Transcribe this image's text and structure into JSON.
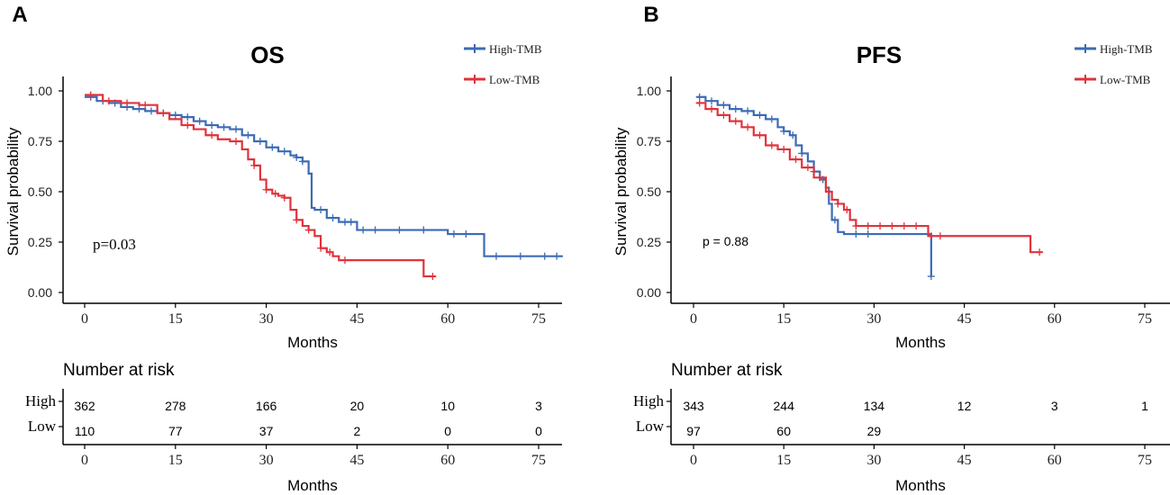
{
  "figure": {
    "panels": [
      {
        "letter": "A",
        "title": "OS",
        "pvalue": "p=0.03",
        "ylabel": "Survival probability",
        "xlabel": "Months",
        "risk_title": "Number at risk",
        "risk_xlabel": "Months",
        "legend": [
          "High-TMB",
          "Low-TMB"
        ],
        "risk_labels": [
          "High",
          "Low"
        ]
      },
      {
        "letter": "B",
        "title": "PFS",
        "pvalue": "p = 0.88",
        "ylabel": "Survival probability",
        "xlabel": "Months",
        "risk_title": "Number at risk",
        "risk_xlabel": "Months",
        "legend": [
          "High-TMB",
          "Low-TMB"
        ],
        "risk_labels": [
          "High",
          "Low"
        ]
      }
    ]
  },
  "chart_data": [
    {
      "type": "line",
      "subtype": "kaplan-meier",
      "title": "OS",
      "xlabel": "Months",
      "ylabel": "Survival probability",
      "xlim": [
        -2,
        79
      ],
      "ylim": [
        -0.02,
        1.02
      ],
      "xticks": [
        0,
        15,
        30,
        45,
        60,
        75
      ],
      "yticks": [
        0.0,
        0.25,
        0.5,
        0.75,
        1.0
      ],
      "ytick_labels": [
        "0.00",
        "0.25",
        "0.50",
        "0.75",
        "1.00"
      ],
      "pvalue": "p=0.03",
      "series": [
        {
          "name": "High-TMB",
          "color": "#3c6bb5",
          "x": [
            0,
            2,
            4,
            6,
            8,
            10,
            12,
            14,
            16,
            18,
            20,
            22,
            24,
            26,
            28,
            30,
            32,
            34,
            35,
            36,
            37,
            37.5,
            38,
            40,
            42,
            45,
            50,
            55,
            60,
            65,
            66,
            70,
            75,
            79
          ],
          "y": [
            0.97,
            0.95,
            0.94,
            0.92,
            0.91,
            0.9,
            0.89,
            0.88,
            0.87,
            0.85,
            0.83,
            0.82,
            0.81,
            0.78,
            0.75,
            0.72,
            0.7,
            0.68,
            0.67,
            0.65,
            0.59,
            0.42,
            0.41,
            0.37,
            0.35,
            0.31,
            0.31,
            0.31,
            0.29,
            0.29,
            0.18,
            0.18,
            0.18,
            0.18
          ],
          "censor_x": [
            1,
            3,
            5,
            7,
            9,
            11,
            13,
            15,
            17,
            19,
            21,
            23,
            25,
            27,
            29,
            31,
            33,
            35,
            36,
            39,
            41,
            43,
            44,
            46,
            48,
            52,
            56,
            61,
            63,
            68,
            72,
            76,
            78
          ]
        },
        {
          "name": "Low-TMB",
          "color": "#e0333b",
          "x": [
            0,
            3,
            6,
            9,
            12,
            14,
            16,
            18,
            20,
            22,
            24,
            26,
            27,
            28,
            29,
            30,
            31,
            32,
            33,
            34,
            35,
            36,
            37,
            38,
            39,
            40,
            41,
            42,
            45,
            50,
            55,
            56,
            58
          ],
          "y": [
            0.98,
            0.95,
            0.94,
            0.93,
            0.89,
            0.86,
            0.83,
            0.81,
            0.78,
            0.76,
            0.75,
            0.71,
            0.66,
            0.63,
            0.56,
            0.51,
            0.49,
            0.48,
            0.47,
            0.41,
            0.36,
            0.33,
            0.31,
            0.28,
            0.22,
            0.2,
            0.18,
            0.16,
            0.16,
            0.16,
            0.16,
            0.08,
            0.08
          ],
          "censor_x": [
            1,
            4,
            7,
            10,
            13,
            17,
            21,
            25,
            28,
            30,
            31.5,
            33,
            35,
            37,
            39,
            40.5,
            43,
            57.5
          ]
        }
      ]
    },
    {
      "type": "line",
      "subtype": "kaplan-meier",
      "title": "PFS",
      "xlabel": "Months",
      "ylabel": "Survival probability",
      "xlim": [
        -1,
        79
      ],
      "ylim": [
        -0.02,
        1.02
      ],
      "xticks": [
        0,
        15,
        30,
        45,
        60,
        75
      ],
      "yticks": [
        0.0,
        0.25,
        0.5,
        0.75,
        1.0
      ],
      "ytick_labels": [
        "0.00",
        "0.25",
        "0.50",
        "0.75",
        "1.00"
      ],
      "pvalue": "p = 0.88",
      "series": [
        {
          "name": "High-TMB",
          "color": "#3c6bb5",
          "x": [
            0.5,
            2,
            4,
            6,
            8,
            10,
            12,
            14,
            15,
            16,
            17,
            18,
            19,
            20,
            21,
            22,
            22.5,
            23,
            24,
            25,
            26,
            28,
            30,
            35,
            39,
            39.5
          ],
          "y": [
            0.97,
            0.95,
            0.93,
            0.91,
            0.9,
            0.88,
            0.86,
            0.82,
            0.8,
            0.78,
            0.73,
            0.69,
            0.65,
            0.6,
            0.56,
            0.52,
            0.44,
            0.36,
            0.3,
            0.29,
            0.29,
            0.29,
            0.29,
            0.29,
            0.29,
            0.08
          ],
          "censor_x": [
            1,
            3,
            5,
            7,
            9,
            11,
            13,
            15,
            16.5,
            18,
            20,
            21.5,
            23.5,
            27,
            29,
            39.5
          ]
        },
        {
          "name": "Low-TMB",
          "color": "#e0333b",
          "x": [
            0.5,
            2,
            4,
            6,
            8,
            10,
            12,
            14,
            16,
            18,
            20,
            22,
            23,
            24,
            25,
            26,
            27,
            28,
            30,
            35,
            39,
            45,
            50,
            55,
            56,
            58
          ],
          "y": [
            0.94,
            0.91,
            0.88,
            0.85,
            0.82,
            0.78,
            0.73,
            0.71,
            0.66,
            0.62,
            0.57,
            0.5,
            0.46,
            0.44,
            0.41,
            0.36,
            0.33,
            0.33,
            0.33,
            0.33,
            0.28,
            0.28,
            0.28,
            0.28,
            0.2,
            0.2
          ],
          "censor_x": [
            1,
            3,
            5,
            7,
            9,
            11,
            13,
            15,
            17,
            19,
            21,
            22.5,
            24,
            25.5,
            27,
            29,
            31,
            33,
            35,
            37,
            39.5,
            41,
            57.5
          ]
        }
      ]
    }
  ],
  "risk_tables": [
    {
      "times": [
        0,
        15,
        30,
        45,
        60,
        75
      ],
      "rows": [
        {
          "group": "High",
          "counts": [
            "362",
            "278",
            "166",
            "20",
            "10",
            "3"
          ]
        },
        {
          "group": "Low",
          "counts": [
            "110",
            "77",
            "37",
            "2",
            "0",
            "0"
          ]
        }
      ]
    },
    {
      "times": [
        0,
        15,
        30,
        45,
        60,
        75
      ],
      "rows": [
        {
          "group": "High",
          "counts": [
            "343",
            "244",
            "134",
            "12",
            "3",
            "1"
          ]
        },
        {
          "group": "Low",
          "counts": [
            "97",
            "60",
            "29",
            "",
            "",
            ""
          ]
        }
      ]
    }
  ]
}
